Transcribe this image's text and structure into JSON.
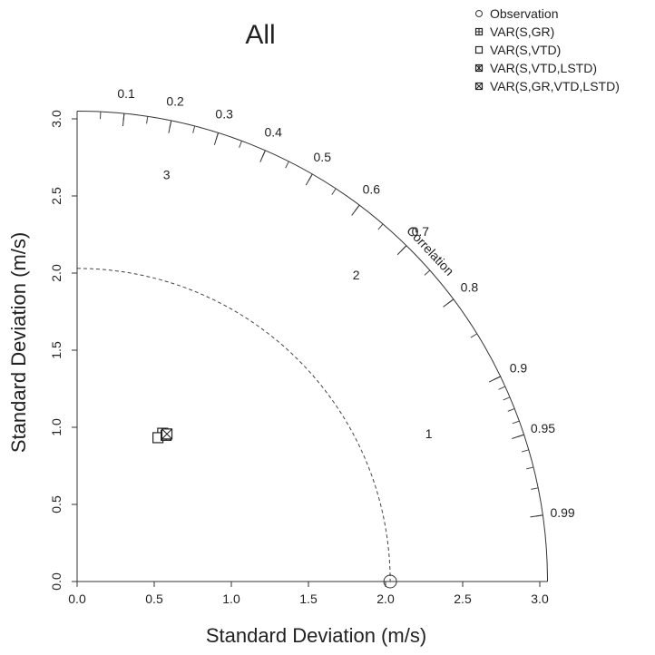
{
  "chart_data": {
    "type": "taylor_diagram",
    "title": "All",
    "xlabel": "Standard Deviation (m/s)",
    "ylabel": "Standard Deviation (m/s)",
    "xlim": [
      0,
      3.05
    ],
    "ylim": [
      0,
      3.05
    ],
    "x_ticks": [
      "0.0",
      "0.5",
      "1.0",
      "1.5",
      "2.0",
      "2.5",
      "3.0"
    ],
    "y_ticks": [
      "0.0",
      "0.5",
      "1.0",
      "1.5",
      "2.0",
      "2.5",
      "3.0"
    ],
    "correlation_label": "Correlation",
    "correlation_ticks": [
      "0.1",
      "0.2",
      "0.3",
      "0.4",
      "0.5",
      "0.6",
      "0.7",
      "0.8",
      "0.9",
      "0.95",
      "0.99"
    ],
    "observation_sd": 2.03,
    "rms_contours": [
      {
        "label": "1",
        "radius": 1
      },
      {
        "label": "2",
        "radius": 2
      },
      {
        "label": "3",
        "radius": 3
      }
    ],
    "legend_position": "top-right",
    "series": [
      {
        "name": "Observation",
        "marker": "circle",
        "sd": 2.03,
        "correlation": 1.0
      },
      {
        "name": "VAR(S,GR)",
        "marker": "square-plus",
        "sd": 1.11,
        "correlation": 0.5
      },
      {
        "name": "VAR(S,VTD)",
        "marker": "square",
        "sd": 1.07,
        "correlation": 0.49
      },
      {
        "name": "VAR(S,VTD,LSTD)",
        "marker": "square-star",
        "sd": 1.11,
        "correlation": 0.52
      },
      {
        "name": "VAR(S,GR,VTD,LSTD)",
        "marker": "square-cross",
        "sd": 1.12,
        "correlation": 0.52
      }
    ]
  }
}
